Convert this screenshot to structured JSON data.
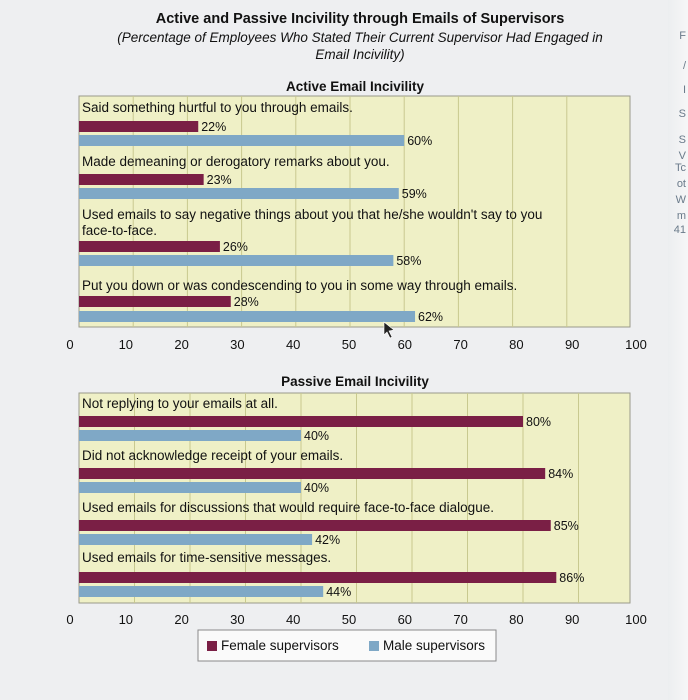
{
  "header": {
    "title": "Active and Passive Incivility through Emails of Supervisors",
    "subtitle_line1": "(Percentage of Employees Who Stated Their Current Supervisor Had Engaged in",
    "subtitle_line2": "Email Incivility)"
  },
  "colors": {
    "female": "#7a1f45",
    "male": "#7fa8c6",
    "plot_bg": "#eff0c6",
    "grid": "#c8c98f"
  },
  "edge_fragments": [
    "F",
    "/",
    "I",
    "S",
    "S",
    "V",
    "Tc",
    "ot",
    "W",
    "m",
    "41"
  ],
  "chart_data": [
    {
      "type": "bar",
      "orientation": "horizontal",
      "title": "Active Email Incivility",
      "categories": [
        "Said something hurtful to you through emails.",
        "Made demeaning or derogatory remarks about you.",
        "Used emails to say negative things about you that he/she wouldn't say to you face-to-face.",
        "Put you down or was condescending to you in some way through emails."
      ],
      "series": [
        {
          "name": "Female supervisors",
          "values": [
            22,
            23,
            26,
            28
          ],
          "labels": [
            "22%",
            "23%",
            "26%",
            "28%"
          ]
        },
        {
          "name": "Male supervisors",
          "values": [
            60,
            59,
            58,
            62
          ],
          "labels": [
            "60%",
            "59%",
            "58%",
            "62%"
          ]
        }
      ],
      "xlim": [
        0,
        100
      ],
      "xticks": [
        "0",
        "10",
        "20",
        "30",
        "40",
        "50",
        "60",
        "70",
        "80",
        "90",
        "100"
      ]
    },
    {
      "type": "bar",
      "orientation": "horizontal",
      "title": "Passive Email Incivility",
      "categories": [
        "Not replying to your emails at all.",
        "Did not acknowledge receipt of your emails.",
        "Used emails for discussions that would require face-to-face dialogue.",
        "Used emails for time-sensitive messages."
      ],
      "series": [
        {
          "name": "Female supervisors",
          "values": [
            80,
            84,
            85,
            86
          ],
          "labels": [
            "80%",
            "84%",
            "85%",
            "86%"
          ]
        },
        {
          "name": "Male supervisors",
          "values": [
            40,
            40,
            42,
            44
          ],
          "labels": [
            "40%",
            "40%",
            "42%",
            "44%"
          ]
        }
      ],
      "xlim": [
        0,
        100
      ],
      "xticks": [
        "0",
        "10",
        "20",
        "30",
        "40",
        "50",
        "60",
        "70",
        "80",
        "90",
        "100"
      ],
      "legend": {
        "position": "bottom",
        "female_label": "Female supervisors",
        "male_label": "Male supervisors"
      }
    }
  ]
}
